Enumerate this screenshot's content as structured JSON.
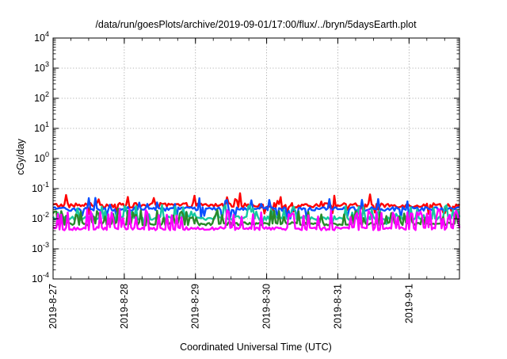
{
  "chart_data": {
    "type": "line",
    "title": "/data/run/goesPlots/archive/2019-09-01/17:00/flux/../bryn/5daysEarth.plot",
    "xlabel": "Coordinated Universal Time (UTC)",
    "ylabel": "cGy/day",
    "yscale": "log",
    "ylim": [
      0.0001,
      10000
    ],
    "y_ticks": [
      {
        "base": "10",
        "exp": "4"
      },
      {
        "base": "10",
        "exp": "3"
      },
      {
        "base": "10",
        "exp": "2"
      },
      {
        "base": "10",
        "exp": "1"
      },
      {
        "base": "10",
        "exp": "0"
      },
      {
        "base": "10",
        "exp": "-1"
      },
      {
        "base": "10",
        "exp": "-2"
      },
      {
        "base": "10",
        "exp": "-3"
      },
      {
        "base": "10",
        "exp": "-4"
      }
    ],
    "xlim": [
      "2019-08-27 00:00",
      "2019-09-01 17:00"
    ],
    "x_ticks": [
      "2019-8-27",
      "2019-8-28",
      "2019-8-29",
      "2019-8-30",
      "2019-8-31",
      "2019-9-1"
    ],
    "grid": true,
    "series": [
      {
        "color": "#ff0000",
        "baseline": 0.028,
        "spread": 0.35,
        "spike_prob": 0.08,
        "spike_factor": 1.7,
        "dip_prob": 0.04,
        "dip_factor": 0.6
      },
      {
        "color": "#0a50ff",
        "baseline": 0.021,
        "spread": 0.3,
        "spike_prob": 0.08,
        "spike_factor": 1.8,
        "dip_prob": 0.06,
        "dip_factor": 0.55
      },
      {
        "color": "#16c8a0",
        "baseline": 0.0105,
        "spread": 0.3,
        "spike_prob": 0.22,
        "spike_factor": 2.0,
        "dip_prob": 0.03,
        "dip_factor": 0.7
      },
      {
        "color": "#2a8a2a",
        "baseline": 0.0068,
        "spread": 0.25,
        "spike_prob": 0.22,
        "spike_factor": 2.2,
        "dip_prob": 0.0,
        "dip_factor": 1.0
      },
      {
        "color": "#ff00ff",
        "baseline": 0.0047,
        "spread": 0.25,
        "spike_prob": 0.25,
        "spike_factor": 3.2,
        "dip_prob": 0.0,
        "dip_factor": 1.0
      }
    ]
  }
}
